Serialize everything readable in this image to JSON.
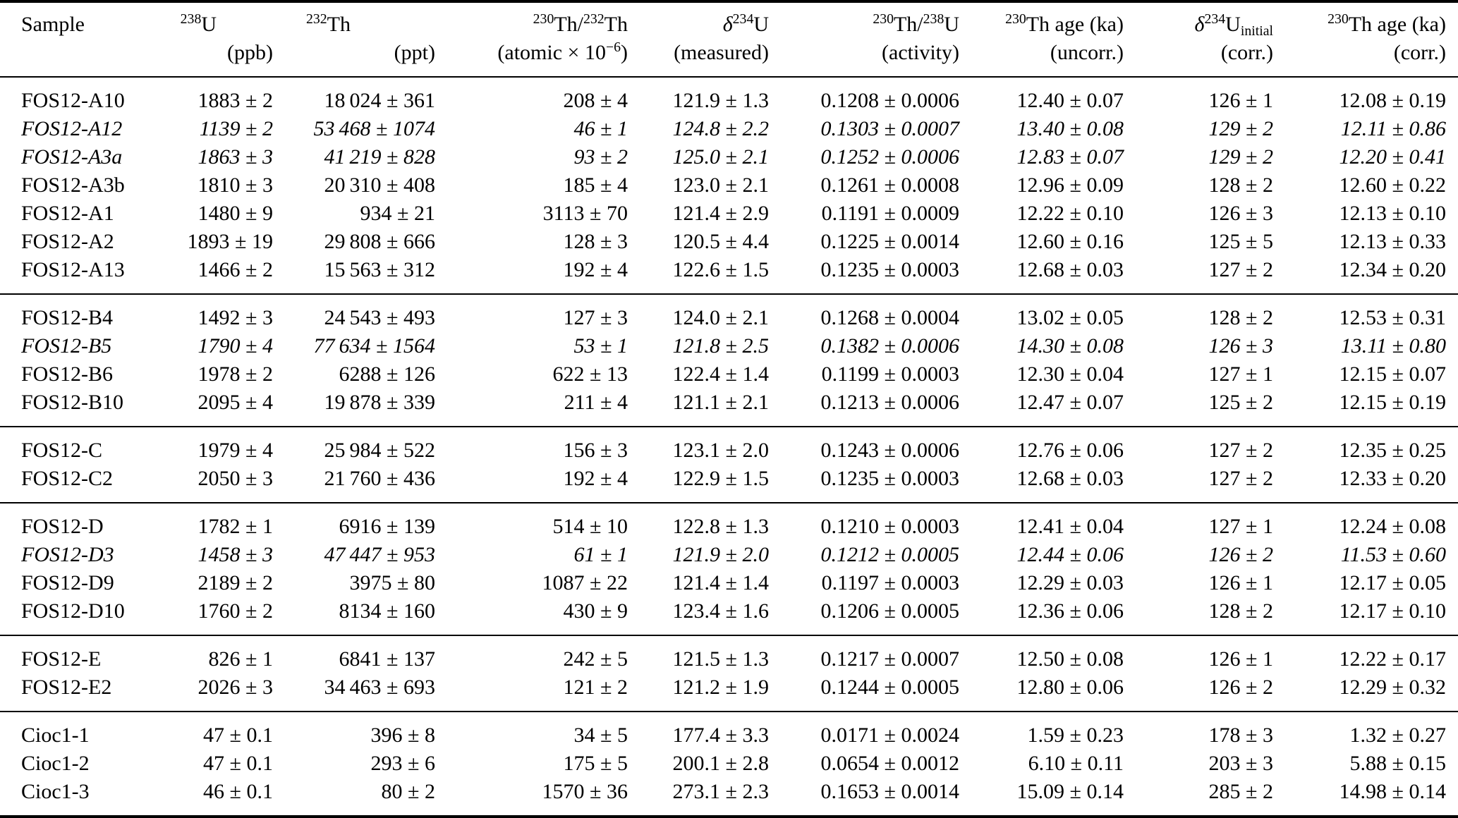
{
  "table": {
    "columns": [
      {
        "id": "sample",
        "label": [
          {
            "txt": "Sample"
          }
        ],
        "unit": []
      },
      {
        "id": "u238",
        "label": [
          {
            "sup": "238"
          },
          {
            "txt": "U"
          }
        ],
        "unit": [
          {
            "txt": "(ppb)"
          }
        ]
      },
      {
        "id": "th232",
        "label": [
          {
            "sup": "232"
          },
          {
            "txt": "Th"
          }
        ],
        "unit": [
          {
            "txt": "(ppt)"
          }
        ]
      },
      {
        "id": "th230-th232",
        "label": [
          {
            "sup": "230"
          },
          {
            "txt": "Th/"
          },
          {
            "sup": "232"
          },
          {
            "txt": "Th"
          }
        ],
        "unit": [
          {
            "txt": "(atomic × 10"
          },
          {
            "sup": "−6"
          },
          {
            "txt": ")"
          }
        ]
      },
      {
        "id": "d234u-measured",
        "label": [
          {
            "itxt": "δ"
          },
          {
            "sup": "234"
          },
          {
            "txt": "U"
          }
        ],
        "unit": [
          {
            "txt": "(measured)"
          }
        ]
      },
      {
        "id": "th230-u238",
        "label": [
          {
            "sup": "230"
          },
          {
            "txt": "Th/"
          },
          {
            "sup": "238"
          },
          {
            "txt": "U"
          }
        ],
        "unit": [
          {
            "txt": "(activity)"
          }
        ]
      },
      {
        "id": "th230-age-uncorr",
        "label": [
          {
            "sup": "230"
          },
          {
            "txt": "Th age (ka)"
          }
        ],
        "unit": [
          {
            "txt": "(uncorr.)"
          }
        ]
      },
      {
        "id": "d234u-initial",
        "label": [
          {
            "itxt": "δ"
          },
          {
            "sup": "234"
          },
          {
            "txt": "U"
          },
          {
            "sub": "initial"
          }
        ],
        "unit": [
          {
            "txt": "(corr.)"
          }
        ]
      },
      {
        "id": "th230-age-corr",
        "label": [
          {
            "sup": "230"
          },
          {
            "txt": "Th age (ka)"
          }
        ],
        "unit": [
          {
            "txt": "(corr.)"
          }
        ]
      }
    ],
    "groups": [
      {
        "id": "A",
        "rows": [
          {
            "italic": false,
            "cells": [
              "FOS12-A10",
              "1883 ± 2",
              "18 024 ± 361",
              "208 ± 4",
              "121.9 ± 1.3",
              "0.1208 ± 0.0006",
              "12.40 ± 0.07",
              "126 ± 1",
              "12.08 ± 0.19"
            ]
          },
          {
            "italic": true,
            "cells": [
              "FOS12-A12",
              "1139 ± 2",
              "53 468 ± 1074",
              "46 ± 1",
              "124.8 ± 2.2",
              "0.1303 ± 0.0007",
              "13.40 ± 0.08",
              "129 ± 2",
              "12.11 ± 0.86"
            ]
          },
          {
            "italic": true,
            "cells": [
              "FOS12-A3a",
              "1863 ± 3",
              "41 219 ± 828",
              "93 ± 2",
              "125.0 ± 2.1",
              "0.1252 ± 0.0006",
              "12.83 ± 0.07",
              "129 ± 2",
              "12.20 ± 0.41"
            ]
          },
          {
            "italic": false,
            "cells": [
              "FOS12-A3b",
              "1810 ± 3",
              "20 310 ± 408",
              "185 ± 4",
              "123.0 ± 2.1",
              "0.1261 ± 0.0008",
              "12.96 ± 0.09",
              "128 ± 2",
              "12.60 ± 0.22"
            ]
          },
          {
            "italic": false,
            "cells": [
              "FOS12-A1",
              "1480 ± 9",
              "934 ± 21",
              "3113 ± 70",
              "121.4 ± 2.9",
              "0.1191 ± 0.0009",
              "12.22 ± 0.10",
              "126 ± 3",
              "12.13 ± 0.10"
            ]
          },
          {
            "italic": false,
            "cells": [
              "FOS12-A2",
              "1893 ± 19",
              "29 808 ± 666",
              "128 ± 3",
              "120.5 ± 4.4",
              "0.1225 ± 0.0014",
              "12.60 ± 0.16",
              "125 ± 5",
              "12.13 ± 0.33"
            ]
          },
          {
            "italic": false,
            "cells": [
              "FOS12-A13",
              "1466 ± 2",
              "15 563 ± 312",
              "192 ± 4",
              "122.6 ± 1.5",
              "0.1235 ± 0.0003",
              "12.68 ± 0.03",
              "127 ± 2",
              "12.34 ± 0.20"
            ]
          }
        ]
      },
      {
        "id": "B",
        "rows": [
          {
            "italic": false,
            "cells": [
              "FOS12-B4",
              "1492 ± 3",
              "24 543 ± 493",
              "127 ± 3",
              "124.0 ± 2.1",
              "0.1268 ± 0.0004",
              "13.02 ± 0.05",
              "128 ± 2",
              "12.53 ± 0.31"
            ]
          },
          {
            "italic": true,
            "cells": [
              "FOS12-B5",
              "1790 ± 4",
              "77 634 ± 1564",
              "53 ± 1",
              "121.8 ± 2.5",
              "0.1382 ± 0.0006",
              "14.30 ± 0.08",
              "126 ± 3",
              "13.11 ± 0.80"
            ]
          },
          {
            "italic": false,
            "cells": [
              "FOS12-B6",
              "1978 ± 2",
              "6288 ± 126",
              "622 ± 13",
              "122.4 ± 1.4",
              "0.1199 ± 0.0003",
              "12.30 ± 0.04",
              "127 ± 1",
              "12.15 ± 0.07"
            ]
          },
          {
            "italic": false,
            "cells": [
              "FOS12-B10",
              "2095 ± 4",
              "19 878 ± 339",
              "211 ± 4",
              "121.1 ± 2.1",
              "0.1213 ± 0.0006",
              "12.47 ± 0.07",
              "125 ± 2",
              "12.15 ± 0.19"
            ]
          }
        ]
      },
      {
        "id": "C",
        "rows": [
          {
            "italic": false,
            "cells": [
              "FOS12-C",
              "1979 ± 4",
              "25 984 ± 522",
              "156 ± 3",
              "123.1 ± 2.0",
              "0.1243 ± 0.0006",
              "12.76 ± 0.06",
              "127 ± 2",
              "12.35 ± 0.25"
            ]
          },
          {
            "italic": false,
            "cells": [
              "FOS12-C2",
              "2050 ± 3",
              "21 760 ± 436",
              "192 ± 4",
              "122.9 ± 1.5",
              "0.1235 ± 0.0003",
              "12.68 ± 0.03",
              "127 ± 2",
              "12.33 ± 0.20"
            ]
          }
        ]
      },
      {
        "id": "D",
        "rows": [
          {
            "italic": false,
            "cells": [
              "FOS12-D",
              "1782 ± 1",
              "6916 ± 139",
              "514 ± 10",
              "122.8 ± 1.3",
              "0.1210 ± 0.0003",
              "12.41 ± 0.04",
              "127 ± 1",
              "12.24 ± 0.08"
            ]
          },
          {
            "italic": true,
            "cells": [
              "FOS12-D3",
              "1458 ± 3",
              "47 447 ± 953",
              "61 ± 1",
              "121.9 ± 2.0",
              "0.1212 ± 0.0005",
              "12.44 ± 0.06",
              "126 ± 2",
              "11.53 ± 0.60"
            ]
          },
          {
            "italic": false,
            "cells": [
              "FOS12-D9",
              "2189 ± 2",
              "3975 ± 80",
              "1087 ± 22",
              "121.4 ± 1.4",
              "0.1197 ± 0.0003",
              "12.29 ± 0.03",
              "126 ± 1",
              "12.17 ± 0.05"
            ]
          },
          {
            "italic": false,
            "cells": [
              "FOS12-D10",
              "1760 ± 2",
              "8134 ± 160",
              "430 ± 9",
              "123.4 ± 1.6",
              "0.1206 ± 0.0005",
              "12.36 ± 0.06",
              "128 ± 2",
              "12.17 ± 0.10"
            ]
          }
        ]
      },
      {
        "id": "E",
        "rows": [
          {
            "italic": false,
            "cells": [
              "FOS12-E",
              "826 ± 1",
              "6841 ± 137",
              "242 ± 5",
              "121.5 ± 1.3",
              "0.1217 ± 0.0007",
              "12.50 ± 0.08",
              "126 ± 1",
              "12.22 ± 0.17"
            ]
          },
          {
            "italic": false,
            "cells": [
              "FOS12-E2",
              "2026 ± 3",
              "34 463 ± 693",
              "121 ± 2",
              "121.2 ± 1.9",
              "0.1244 ± 0.0005",
              "12.80 ± 0.06",
              "126 ± 2",
              "12.29 ± 0.32"
            ]
          }
        ]
      },
      {
        "id": "Cioc1",
        "rows": [
          {
            "italic": false,
            "cells": [
              "Cioc1-1",
              "47 ± 0.1",
              "396 ± 8",
              "34 ± 5",
              "177.4 ± 3.3",
              "0.0171 ± 0.0024",
              "1.59 ± 0.23",
              "178 ± 3",
              "1.32 ± 0.27"
            ]
          },
          {
            "italic": false,
            "cells": [
              "Cioc1-2",
              "47 ± 0.1",
              "293 ± 6",
              "175 ± 5",
              "200.1 ± 2.8",
              "0.0654 ± 0.0012",
              "6.10 ± 0.11",
              "203 ± 3",
              "5.88 ± 0.15"
            ]
          },
          {
            "italic": false,
            "cells": [
              "Cioc1-3",
              "46 ± 0.1",
              "80 ± 2",
              "1570 ± 36",
              "273.1 ± 2.3",
              "0.1653 ± 0.0014",
              "15.09 ± 0.14",
              "285 ± 2",
              "14.98 ± 0.14"
            ]
          }
        ]
      }
    ]
  }
}
